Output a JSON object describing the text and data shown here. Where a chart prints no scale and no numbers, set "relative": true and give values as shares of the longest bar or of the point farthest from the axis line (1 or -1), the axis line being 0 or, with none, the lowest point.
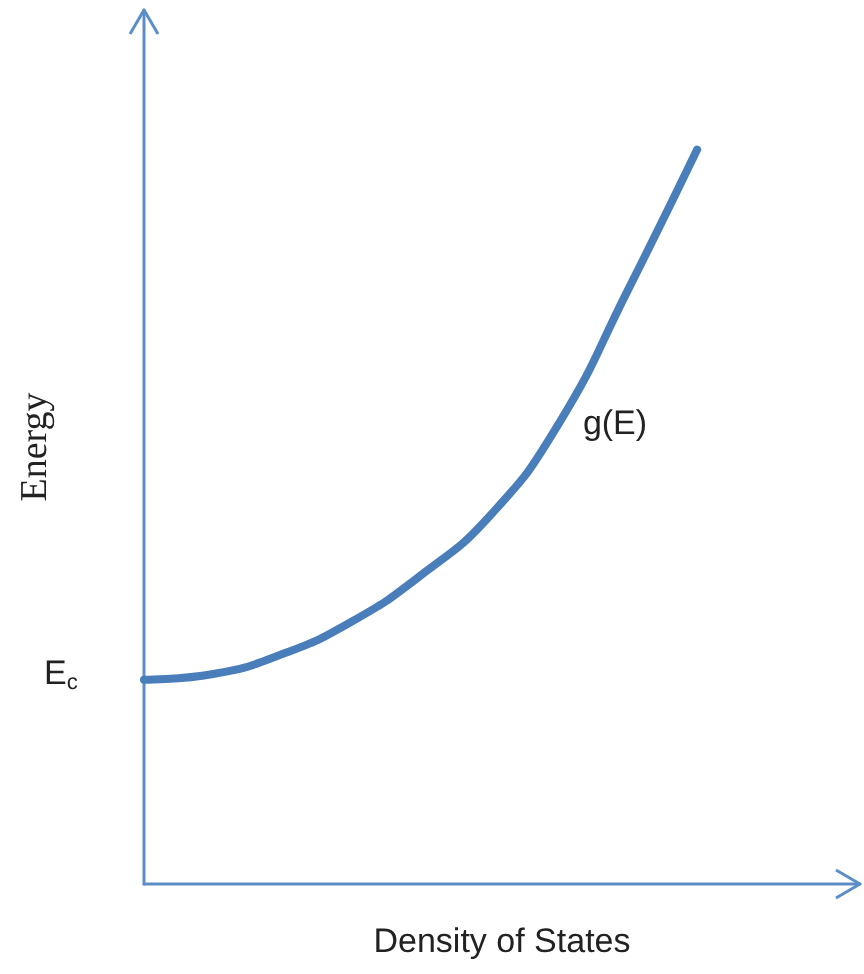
{
  "chart_data": {
    "type": "line",
    "relative": true,
    "xlabel": "Density of States",
    "ylabel": "Energy",
    "categories": [
      null,
      null,
      null,
      null,
      null,
      null,
      null,
      null,
      null
    ],
    "series": [
      {
        "name": "g(E)",
        "color": "#4a7ebb",
        "values": [
          0.278,
          0.286,
          0.313,
          0.357,
          0.42,
          0.501,
          0.627,
          0.809,
          1.0
        ]
      }
    ],
    "annotations": [
      "E$_{c}$"
    ],
    "legend": false,
    "grid": false,
    "marker": "none"
  }
}
